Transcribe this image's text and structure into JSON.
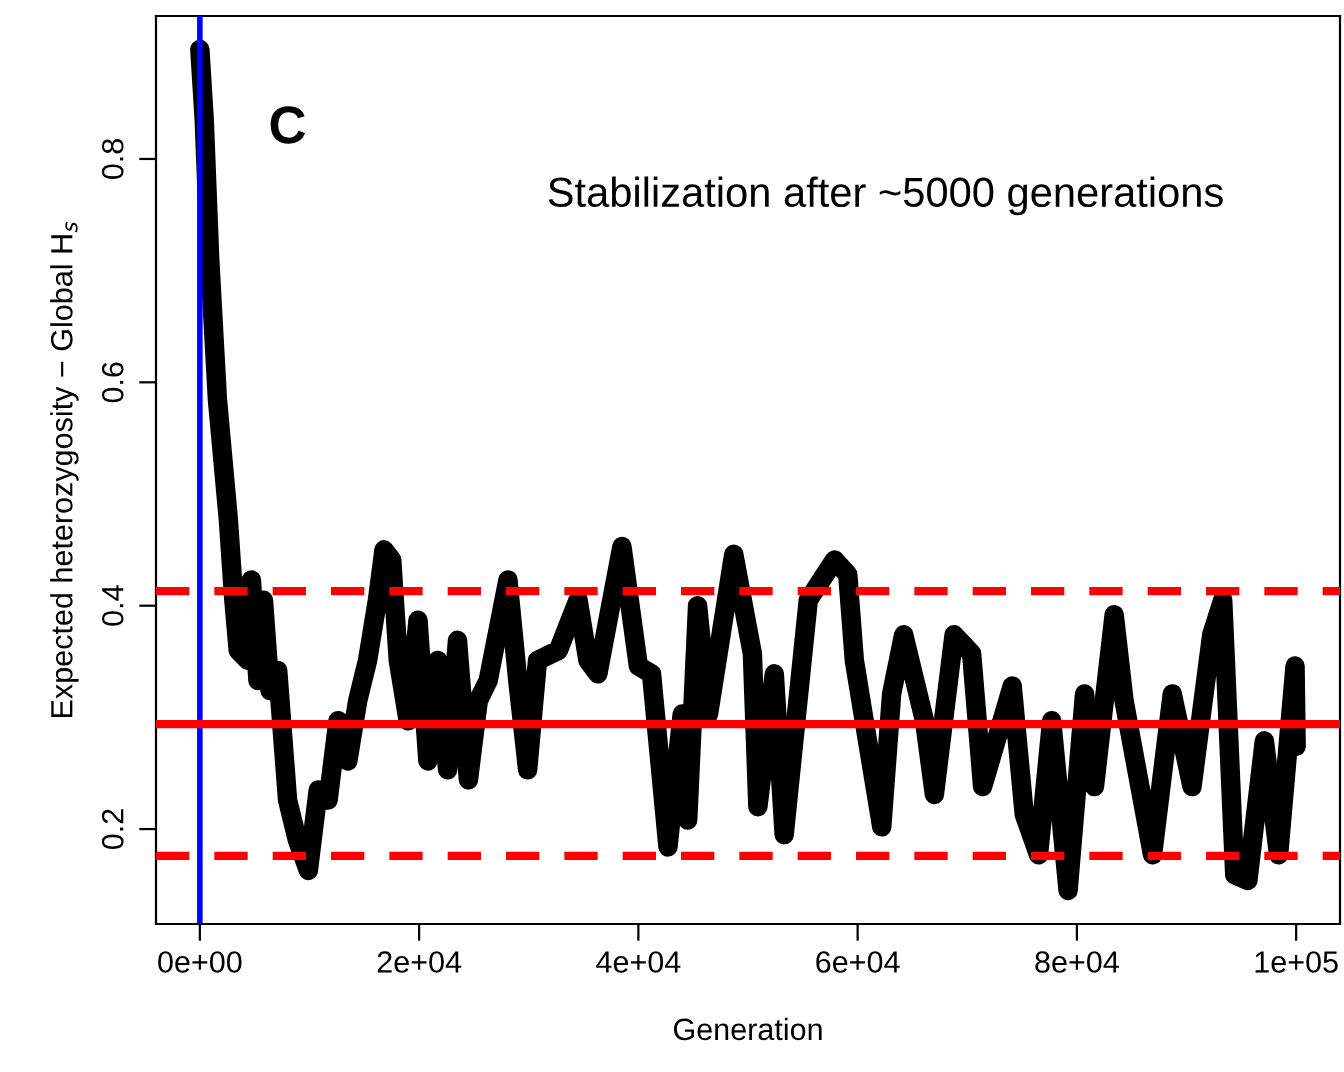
{
  "chart_data": {
    "type": "line",
    "xlabel": "Generation",
    "ylabel": "Expected heterozygosity − Global H$_{s}$",
    "annotations": [
      "C",
      "Stabilization after ~5000 generations"
    ],
    "xlim": [
      -4000,
      104000
    ],
    "xticks": [
      {
        "value": 0,
        "label": "0e+00"
      },
      {
        "value": 20000,
        "label": "2e+04"
      },
      {
        "value": 40000,
        "label": "4e+04"
      },
      {
        "value": 60000,
        "label": "6e+04"
      },
      {
        "value": 80000,
        "label": "8e+04"
      },
      {
        "value": 100000,
        "label": "1e+05"
      }
    ],
    "ylim": [
      0.115,
      0.928
    ],
    "yticks": [
      0.2,
      0.4,
      0.6,
      0.8
    ],
    "grid": false,
    "legend": false,
    "line_style": "solid",
    "series": [
      {
        "color": "#000000",
        "x": [
          0,
          400,
          900,
          1600,
          2600,
          3100,
          3500,
          4400,
          4700,
          5300,
          5800,
          6400,
          7100,
          8000,
          8900,
          9900,
          10800,
          11700,
          12600,
          13500,
          14400,
          15300,
          16200,
          16800,
          17500,
          18100,
          19000,
          19900,
          20800,
          21700,
          22600,
          23500,
          24500,
          25400,
          26300,
          28100,
          29000,
          29900,
          30800,
          32700,
          34500,
          35400,
          36300,
          38500,
          40000,
          41200,
          42700,
          44000,
          44500,
          45400,
          46400,
          48700,
          50400,
          50900,
          52400,
          53300,
          55500,
          57900,
          59100,
          59700,
          60600,
          62200,
          63100,
          64200,
          66100,
          67000,
          68800,
          70400,
          71400,
          74100,
          75200,
          76500,
          77700,
          79200,
          80700,
          81600,
          83400,
          84300,
          86900,
          88700,
          90500,
          92300,
          93300,
          94400,
          95600,
          97100,
          98400,
          99900,
          100000
        ],
        "values": [
          0.898,
          0.835,
          0.71,
          0.585,
          0.477,
          0.405,
          0.36,
          0.351,
          0.423,
          0.333,
          0.405,
          0.324,
          0.342,
          0.226,
          0.19,
          0.163,
          0.235,
          0.226,
          0.297,
          0.261,
          0.315,
          0.351,
          0.405,
          0.45,
          0.441,
          0.351,
          0.297,
          0.387,
          0.261,
          0.351,
          0.253,
          0.369,
          0.244,
          0.315,
          0.333,
          0.423,
          0.333,
          0.253,
          0.351,
          0.36,
          0.405,
          0.351,
          0.339,
          0.453,
          0.346,
          0.339,
          0.184,
          0.303,
          0.208,
          0.4,
          0.303,
          0.446,
          0.357,
          0.22,
          0.339,
          0.195,
          0.405,
          0.441,
          0.428,
          0.351,
          0.297,
          0.202,
          0.321,
          0.374,
          0.297,
          0.231,
          0.374,
          0.357,
          0.238,
          0.328,
          0.213,
          0.177,
          0.297,
          0.145,
          0.321,
          0.238,
          0.392,
          0.315,
          0.177,
          0.321,
          0.238,
          0.374,
          0.405,
          0.159,
          0.154,
          0.279,
          0.177,
          0.346,
          0.274
        ]
      }
    ],
    "ref_lines": [
      {
        "axis": "x",
        "value": 0,
        "color": "#0000ff",
        "line_style": "solid"
      },
      {
        "axis": "y",
        "value": 0.413,
        "color": "#ff0000",
        "line_style": "dashed"
      },
      {
        "axis": "y",
        "value": 0.294,
        "color": "#ff0000",
        "line_style": "solid"
      },
      {
        "axis": "y",
        "value": 0.176,
        "color": "#ff0000",
        "line_style": "dashed"
      }
    ]
  }
}
